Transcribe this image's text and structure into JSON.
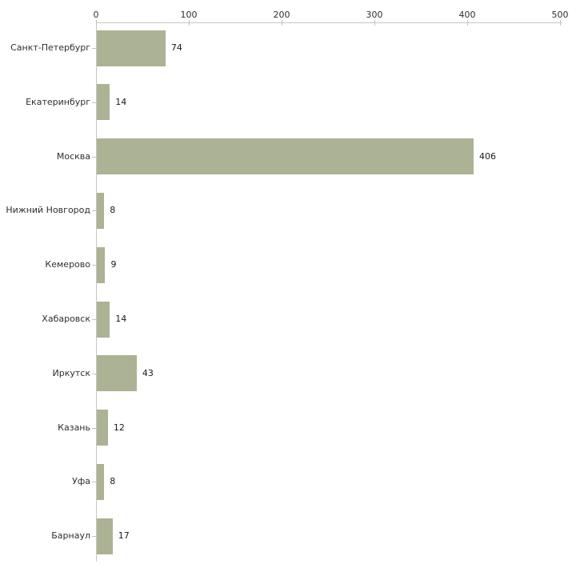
{
  "chart_data": {
    "type": "bar",
    "orientation": "horizontal",
    "title": "",
    "xlabel": "",
    "ylabel": "",
    "categories": [
      "Санкт-Петербург",
      "Екатеринбург",
      "Москва",
      "Нижний Новгород",
      "Кемерово",
      "Хабаровск",
      "Иркутск",
      "Казань",
      "Уфа",
      "Барнаул"
    ],
    "values": [
      74,
      14,
      406,
      8,
      9,
      14,
      43,
      12,
      8,
      17
    ],
    "value_labels": [
      "74",
      "14",
      "406",
      "8",
      "9",
      "14",
      "43",
      "12",
      "8",
      "17"
    ],
    "xlim": [
      0,
      500
    ],
    "x_ticks": [
      0,
      100,
      200,
      300,
      400,
      500
    ],
    "x_tick_labels": [
      "0",
      "100",
      "200",
      "300",
      "400",
      "500"
    ],
    "axis_position": "top",
    "grid": false,
    "legend": null,
    "colors": {
      "bar": "#acb294",
      "axis_line": "#c6c6c2",
      "tick_mark": "#c2c8a2",
      "text": "#2e2e2e",
      "background": "#ffffff"
    }
  }
}
